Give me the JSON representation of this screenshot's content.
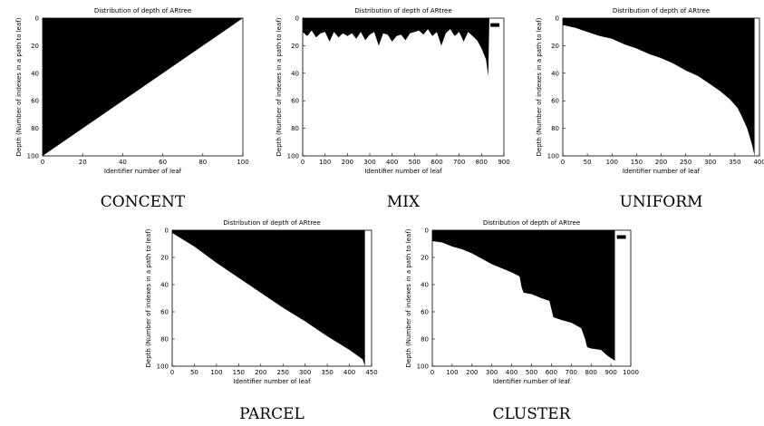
{
  "figure": {
    "captions": [
      "CONCENT",
      "MIX",
      "UNIFORM",
      "PARCEL",
      "CLUSTER"
    ]
  },
  "chart_data": [
    {
      "id": "concent",
      "type": "area",
      "caption": "CONCENT",
      "title": "Distribution of depth of ARtree",
      "xlabel": "Identifier number of leaf",
      "ylabel": "Depth (Number of indexes in a path to leaf)",
      "xlim": [
        0,
        100
      ],
      "ylim": [
        0,
        100
      ],
      "y_inverted": true,
      "xticks": [
        0,
        20,
        40,
        60,
        80,
        100
      ],
      "yticks": [
        0,
        20,
        40,
        60,
        80,
        100
      ],
      "grid": false,
      "fill_color": "#000000",
      "series": [
        {
          "x": [
            0,
            25,
            50,
            75,
            100
          ],
          "values": [
            100,
            75,
            50,
            25,
            0
          ]
        }
      ]
    },
    {
      "id": "mix",
      "type": "area",
      "caption": "MIX",
      "title": "Distribution of depth of ARtree",
      "xlabel": "Identifier number of leaf",
      "ylabel": "Depth (Number of indexes in a path to leaf)",
      "xlim": [
        0,
        900
      ],
      "ylim": [
        0,
        100
      ],
      "y_inverted": true,
      "xticks": [
        0,
        100,
        200,
        300,
        400,
        500,
        600,
        700,
        800,
        900
      ],
      "yticks": [
        0,
        20,
        40,
        60,
        80,
        100
      ],
      "grid": false,
      "fill_color": "#000000",
      "series": [
        {
          "x": [
            0,
            20,
            40,
            60,
            80,
            100,
            120,
            140,
            160,
            180,
            200,
            220,
            240,
            260,
            280,
            300,
            320,
            340,
            360,
            380,
            400,
            420,
            440,
            460,
            480,
            500,
            520,
            540,
            560,
            580,
            600,
            620,
            640,
            660,
            680,
            700,
            720,
            740,
            760,
            780,
            800,
            820,
            830,
            835
          ],
          "values": [
            10,
            13,
            9,
            14,
            11,
            10,
            17,
            10,
            14,
            11,
            13,
            11,
            15,
            10,
            16,
            12,
            10,
            20,
            11,
            12,
            17,
            13,
            12,
            16,
            11,
            10,
            9,
            12,
            8,
            13,
            10,
            20,
            11,
            8,
            13,
            10,
            17,
            10,
            13,
            16,
            22,
            30,
            42,
            0
          ]
        }
      ],
      "outlier_segment": {
        "x": [
          840,
          880
        ],
        "y": 5
      }
    },
    {
      "id": "uniform",
      "type": "area",
      "caption": "UNIFORM",
      "title": "Distribution of depth of ARtree",
      "xlabel": "Identifier number of leaf",
      "ylabel": "Depth (Number of indexes in a path to leaf)",
      "xlim": [
        0,
        400
      ],
      "ylim": [
        0,
        100
      ],
      "y_inverted": true,
      "xticks": [
        0,
        50,
        100,
        150,
        200,
        250,
        300,
        350,
        400
      ],
      "yticks": [
        0,
        20,
        40,
        60,
        80,
        100
      ],
      "grid": false,
      "fill_color": "#000000",
      "series": [
        {
          "x": [
            0,
            25,
            50,
            75,
            100,
            125,
            150,
            175,
            200,
            225,
            250,
            275,
            300,
            320,
            340,
            355,
            365,
            375,
            385,
            390
          ],
          "values": [
            5,
            7,
            10,
            13,
            15,
            19,
            22,
            26,
            29,
            33,
            38,
            42,
            48,
            53,
            59,
            65,
            72,
            80,
            92,
            100
          ]
        }
      ]
    },
    {
      "id": "parcel",
      "type": "area",
      "caption": "PARCEL",
      "title": "Distribution of depth of ARtree",
      "xlabel": "Identifier number of leaf",
      "ylabel": "Depth (Number of indexes in a path to leaf)",
      "xlim": [
        0,
        450
      ],
      "ylim": [
        0,
        100
      ],
      "y_inverted": true,
      "xticks": [
        0,
        50,
        100,
        150,
        200,
        250,
        300,
        350,
        400,
        450
      ],
      "yticks": [
        0,
        20,
        40,
        60,
        80,
        100
      ],
      "grid": false,
      "fill_color": "#000000",
      "series": [
        {
          "x": [
            0,
            50,
            100,
            150,
            200,
            250,
            300,
            350,
            400,
            430,
            435
          ],
          "values": [
            2,
            12,
            24,
            35,
            46,
            57,
            67,
            78,
            88,
            95,
            100
          ]
        }
      ]
    },
    {
      "id": "cluster",
      "type": "area",
      "caption": "CLUSTER",
      "title": "Distribution of depth of ARtree",
      "xlabel": "Identifier number of leaf",
      "ylabel": "Depth (Number of indexes in a path to leaf)",
      "xlim": [
        0,
        1000
      ],
      "ylim": [
        0,
        100
      ],
      "y_inverted": true,
      "xticks": [
        0,
        100,
        200,
        300,
        400,
        500,
        600,
        700,
        800,
        900,
        1000
      ],
      "yticks": [
        0,
        20,
        40,
        60,
        80,
        100
      ],
      "grid": false,
      "fill_color": "#000000",
      "series": [
        {
          "x": [
            0,
            50,
            100,
            150,
            200,
            250,
            300,
            350,
            400,
            440,
            450,
            460,
            500,
            550,
            590,
            600,
            610,
            650,
            700,
            750,
            770,
            780,
            800,
            850,
            880,
            900,
            920
          ],
          "values": [
            8,
            9,
            12,
            14,
            17,
            21,
            25,
            28,
            31,
            34,
            42,
            46,
            47,
            50,
            52,
            58,
            64,
            66,
            68,
            72,
            80,
            86,
            87,
            88,
            92,
            94,
            96
          ]
        }
      ],
      "outlier_segment": {
        "x": [
          930,
          975
        ],
        "y": 5
      }
    }
  ]
}
